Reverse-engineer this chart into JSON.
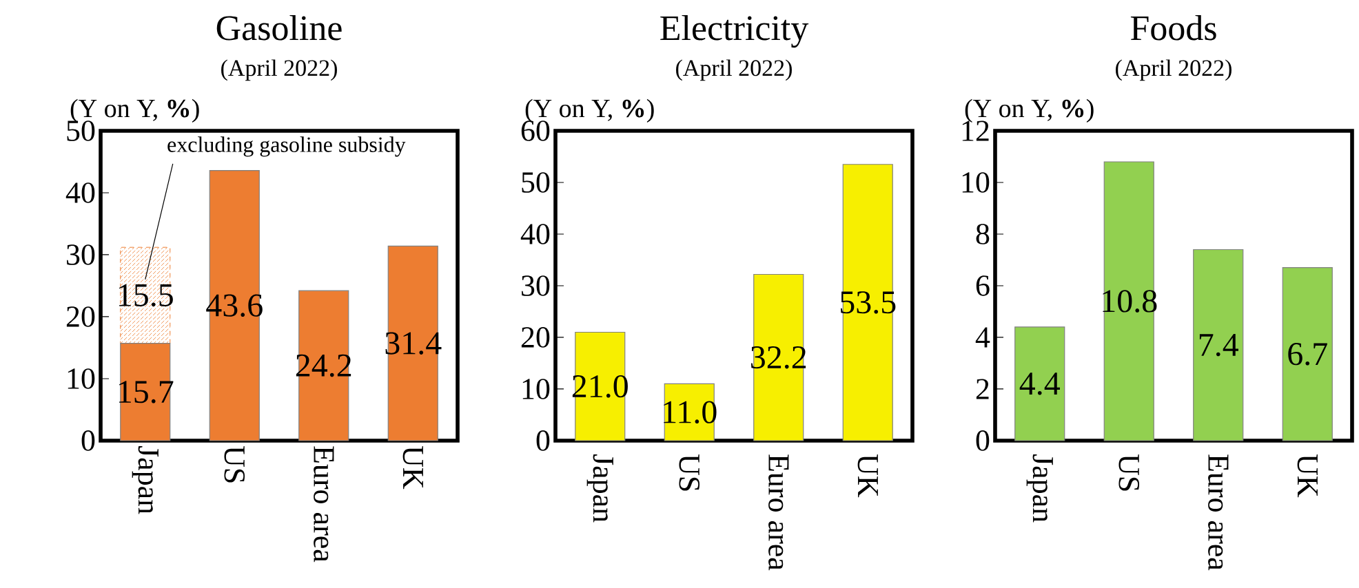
{
  "chart_data": [
    {
      "type": "bar",
      "title": "Gasoline",
      "subtitle": "(April 2022)",
      "ylabel": "(Y on Y, **%**)",
      "categories": [
        "Japan",
        "US",
        "Euro area",
        "UK"
      ],
      "stacked": true,
      "series": [
        {
          "color": "#ed7d31",
          "values": [
            15.7,
            43.6,
            24.2,
            31.4
          ]
        },
        {
          "color": "#ed7d31",
          "values": [
            15.5,
            null,
            null,
            null
          ]
        }
      ],
      "ylim": [
        0,
        50
      ],
      "yticks": [
        0,
        10,
        20,
        30,
        40,
        50
      ],
      "data_labels": true,
      "annotations": [
        {
          "text": "excluding gasoline subsidy",
          "x": "Japan",
          "y": 26
        }
      ]
    },
    {
      "type": "bar",
      "title": "Electricity",
      "subtitle": "(April 2022)",
      "ylabel": "(Y on Y, **%**)",
      "categories": [
        "Japan",
        "US",
        "Euro area",
        "UK"
      ],
      "color": "#f7ef00",
      "values": [
        21,
        11,
        32.2,
        53.5
      ],
      "value_labels": [
        "21.0",
        "11.0",
        "32.2",
        "53.5"
      ],
      "ylim": [
        0,
        60
      ],
      "yticks": [
        0,
        10,
        20,
        30,
        40,
        50,
        60
      ]
    },
    {
      "type": "bar",
      "title": "Foods",
      "subtitle": "(April 2022)",
      "ylabel": "(Y on Y, **%**)",
      "categories": [
        "Japan",
        "US",
        "Euro area",
        "UK"
      ],
      "color": "#92d050",
      "values": [
        4.4,
        10.8,
        7.4,
        6.7
      ],
      "ylim": [
        0,
        12
      ],
      "yticks": [
        0,
        2,
        4,
        6,
        8,
        10,
        12
      ],
      "data_labels": true
    }
  ]
}
